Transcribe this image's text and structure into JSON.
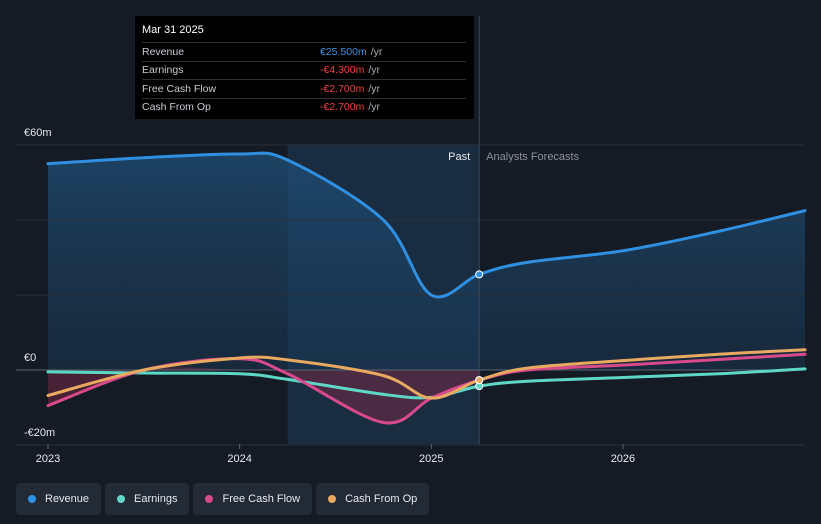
{
  "chart_data": {
    "type": "line",
    "y_unit_label_top": "€60m",
    "y_unit_label_zero": "€0",
    "y_unit_label_bottom": "-€20m",
    "ylim": [
      -20,
      60
    ],
    "xlim": [
      2023.0,
      2026.95
    ],
    "x_ticks": [
      {
        "value": 2023,
        "label": "2023"
      },
      {
        "value": 2024,
        "label": "2024"
      },
      {
        "value": 2025,
        "label": "2025"
      },
      {
        "value": 2026,
        "label": "2026"
      }
    ],
    "past_label": "Past",
    "forecast_label": "Analysts Forecasts",
    "divider_x": 2025.25,
    "highlight_start": 2024.25,
    "series": [
      {
        "name": "Revenue",
        "color": "#2f8fe0",
        "points": [
          [
            2023.0,
            55.0
          ],
          [
            2023.5,
            56.6
          ],
          [
            2024.0,
            57.6
          ],
          [
            2024.25,
            56.0
          ],
          [
            2024.75,
            40.0
          ],
          [
            2025.0,
            20.0
          ],
          [
            2025.25,
            25.5
          ],
          [
            2025.5,
            28.7
          ],
          [
            2026.0,
            31.8
          ],
          [
            2026.5,
            37.0
          ],
          [
            2026.95,
            42.5
          ]
        ]
      },
      {
        "name": "Earnings",
        "color": "#5fd7c7",
        "points": [
          [
            2023.0,
            -0.5
          ],
          [
            2023.5,
            -0.8
          ],
          [
            2024.0,
            -1.0
          ],
          [
            2024.25,
            -2.5
          ],
          [
            2024.75,
            -6.5
          ],
          [
            2025.0,
            -7.3
          ],
          [
            2025.25,
            -4.3
          ],
          [
            2025.5,
            -3.0
          ],
          [
            2026.0,
            -2.0
          ],
          [
            2026.5,
            -1.0
          ],
          [
            2026.95,
            0.3
          ]
        ]
      },
      {
        "name": "Free Cash Flow",
        "color": "#d84a8c",
        "points": [
          [
            2023.0,
            -9.5
          ],
          [
            2023.5,
            0.0
          ],
          [
            2024.0,
            3.0
          ],
          [
            2024.25,
            -1.0
          ],
          [
            2024.75,
            -14.0
          ],
          [
            2025.0,
            -7.5
          ],
          [
            2025.25,
            -2.7
          ],
          [
            2025.5,
            0.0
          ],
          [
            2026.0,
            1.3
          ],
          [
            2026.5,
            2.8
          ],
          [
            2026.95,
            4.2
          ]
        ]
      },
      {
        "name": "Cash From Op",
        "color": "#e8a960",
        "points": [
          [
            2023.0,
            -6.8
          ],
          [
            2023.5,
            0.0
          ],
          [
            2024.0,
            3.2
          ],
          [
            2024.25,
            2.7
          ],
          [
            2024.75,
            -1.5
          ],
          [
            2025.0,
            -7.5
          ],
          [
            2025.25,
            -2.7
          ],
          [
            2025.5,
            0.5
          ],
          [
            2026.0,
            2.5
          ],
          [
            2026.5,
            4.2
          ],
          [
            2026.95,
            5.4
          ]
        ]
      }
    ]
  },
  "tooltip": {
    "date": "Mar 31 2025",
    "rows": [
      {
        "label": "Revenue",
        "value": "€25.500m",
        "unit": "/yr",
        "color": "#3b93e6"
      },
      {
        "label": "Earnings",
        "value": "-€4.300m",
        "unit": "/yr",
        "color": "#f0433e"
      },
      {
        "label": "Free Cash Flow",
        "value": "-€2.700m",
        "unit": "/yr",
        "color": "#f0433e"
      },
      {
        "label": "Cash From Op",
        "value": "-€2.700m",
        "unit": "/yr",
        "color": "#f0433e"
      }
    ]
  },
  "legend": [
    {
      "label": "Revenue",
      "color": "#2f8fe0"
    },
    {
      "label": "Earnings",
      "color": "#5fd7c7"
    },
    {
      "label": "Free Cash Flow",
      "color": "#d84a8c"
    },
    {
      "label": "Cash From Op",
      "color": "#e8a960"
    }
  ]
}
